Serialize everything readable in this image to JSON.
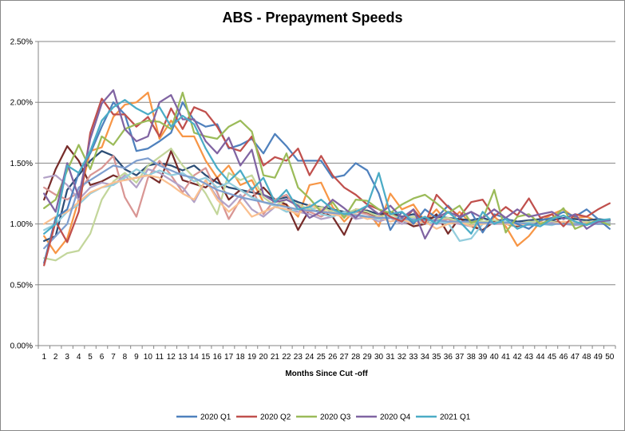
{
  "chart_data": {
    "type": "line",
    "title": "ABS - Prepayment Speeds",
    "xlabel": "Months Since Cut -off",
    "ylabel": "",
    "y_ticks": [
      "0.00%",
      "0.50%",
      "1.00%",
      "1.50%",
      "2.00%",
      "2.50%"
    ],
    "ylim": [
      0,
      2.5
    ],
    "x": [
      1,
      2,
      3,
      4,
      5,
      6,
      7,
      8,
      9,
      10,
      11,
      12,
      13,
      14,
      15,
      16,
      17,
      18,
      19,
      20,
      21,
      22,
      23,
      24,
      25,
      26,
      27,
      28,
      29,
      30,
      31,
      32,
      33,
      34,
      35,
      36,
      37,
      38,
      39,
      40,
      41,
      42,
      43,
      44,
      45,
      46,
      47,
      48,
      49,
      50
    ],
    "grid": "horizontal",
    "legend_position": "bottom",
    "series": [
      {
        "name": "2020 Q1",
        "color": "#4f81bd",
        "values": [
          0.68,
          1.05,
          1.12,
          1.42,
          1.58,
          1.8,
          2.0,
          1.9,
          1.6,
          1.62,
          1.68,
          1.75,
          2.0,
          1.85,
          1.8,
          1.82,
          1.62,
          1.65,
          1.7,
          1.58,
          1.74,
          1.64,
          1.52,
          1.52,
          1.52,
          1.38,
          1.4,
          1.5,
          1.44,
          1.25,
          0.95,
          1.1,
          1.0,
          1.12,
          1.05,
          1.15,
          1.05,
          1.1,
          0.93,
          1.08,
          1.05,
          1.0,
          0.96,
          1.03,
          1.05,
          1.1,
          1.06,
          1.12,
          1.04,
          0.96
        ]
      },
      {
        "name": "2020 Q2",
        "color": "#c0504d",
        "values": [
          0.66,
          1.02,
          0.85,
          1.1,
          1.75,
          2.03,
          1.9,
          1.9,
          1.8,
          1.88,
          1.72,
          1.95,
          1.78,
          1.96,
          1.92,
          1.8,
          1.63,
          1.6,
          1.72,
          1.48,
          1.55,
          1.52,
          1.62,
          1.4,
          1.56,
          1.4,
          1.3,
          1.24,
          1.16,
          1.12,
          1.06,
          1.02,
          1.12,
          1.0,
          1.24,
          1.14,
          1.06,
          1.18,
          1.2,
          1.06,
          1.14,
          1.07,
          1.21,
          1.05,
          1.08,
          0.98,
          1.08,
          1.06,
          1.12,
          1.17
        ]
      },
      {
        "name": "2020 Q3",
        "color": "#9bbb59",
        "values": [
          1.13,
          1.2,
          1.44,
          1.65,
          1.45,
          1.72,
          1.65,
          1.78,
          1.82,
          1.85,
          1.84,
          1.78,
          2.08,
          1.75,
          1.72,
          1.7,
          1.8,
          1.85,
          1.76,
          1.4,
          1.38,
          1.58,
          1.3,
          1.21,
          1.1,
          1.18,
          1.05,
          1.2,
          1.19,
          1.12,
          1.09,
          1.16,
          1.21,
          1.24,
          1.17,
          1.09,
          1.15,
          1.01,
          1.04,
          1.28,
          0.93,
          1.06,
          1.08,
          1.0,
          1.04,
          1.13,
          0.96,
          1.0,
          1.03,
          0.99
        ]
      },
      {
        "name": "2020 Q4",
        "color": "#8064a2",
        "values": [
          1.25,
          1.1,
          1.5,
          1.22,
          1.7,
          1.99,
          2.1,
          1.78,
          1.68,
          1.72,
          2.0,
          2.06,
          1.86,
          1.86,
          1.68,
          1.58,
          1.71,
          1.48,
          1.61,
          1.24,
          1.18,
          1.2,
          1.15,
          1.05,
          1.1,
          1.2,
          1.13,
          1.05,
          1.15,
          1.08,
          1.15,
          1.05,
          1.12,
          0.88,
          1.05,
          1.1,
          1.06,
          1.1,
          1.05,
          1.12,
          1.05,
          1.12,
          1.06,
          1.08,
          1.1,
          1.04,
          1.08,
          0.96,
          1.02,
          1.03
        ]
      },
      {
        "name": "2021 Q1",
        "color": "#4bacc6",
        "values": [
          0.92,
          1.0,
          1.48,
          1.42,
          1.6,
          1.85,
          1.96,
          2.02,
          1.95,
          1.9,
          1.96,
          1.8,
          1.89,
          1.82,
          1.62,
          1.46,
          1.35,
          1.44,
          1.28,
          1.38,
          1.18,
          1.28,
          1.12,
          1.14,
          1.2,
          1.12,
          1.08,
          1.1,
          1.15,
          1.42,
          1.08,
          1.1,
          1.02,
          1.06,
          1.0,
          1.1,
          1.02,
          0.92,
          1.1,
          1.0,
          1.04,
          0.96,
          1.0,
          0.98,
          1.04,
          1.07,
          1.02,
          0.99,
          1.03,
          1.04
        ]
      },
      {
        "name": "",
        "color": "#f79646",
        "values": [
          0.9,
          0.76,
          0.88,
          1.2,
          1.6,
          1.63,
          1.88,
          1.98,
          2.0,
          2.08,
          1.7,
          1.85,
          1.72,
          1.72,
          1.52,
          1.38,
          1.48,
          1.32,
          1.36,
          1.18,
          1.15,
          1.16,
          1.06,
          1.32,
          1.34,
          1.14,
          1.02,
          1.12,
          1.11,
          0.98,
          1.25,
          1.12,
          1.16,
          1.02,
          1.12,
          1.0,
          1.1,
          1.0,
          0.94,
          1.06,
          0.98,
          0.82,
          0.9,
          1.02,
          1.08,
          1.12,
          1.05,
          1.06,
          1.02,
          1.04
        ]
      },
      {
        "name": "",
        "color": "#2c4d75",
        "values": [
          0.86,
          0.9,
          1.28,
          1.4,
          1.52,
          1.6,
          1.56,
          1.45,
          1.4,
          1.48,
          1.5,
          1.48,
          1.44,
          1.48,
          1.4,
          1.34,
          1.3,
          1.28,
          1.26,
          1.24,
          1.2,
          1.22,
          1.18,
          1.15,
          1.14,
          1.12,
          1.1,
          1.1,
          1.11,
          1.08,
          1.1,
          1.06,
          1.08,
          1.04,
          1.06,
          1.05,
          1.04,
          1.03,
          1.05,
          1.02,
          1.04,
          1.02,
          1.03,
          1.04,
          1.03,
          1.05,
          1.04,
          1.03,
          1.04,
          1.03
        ]
      },
      {
        "name": "",
        "color": "#772c2a",
        "values": [
          1.2,
          1.45,
          1.64,
          1.52,
          1.32,
          1.35,
          1.4,
          1.36,
          1.38,
          1.4,
          1.34,
          1.6,
          1.36,
          1.33,
          1.3,
          1.38,
          1.2,
          1.28,
          1.22,
          1.3,
          1.2,
          1.16,
          0.95,
          1.12,
          1.1,
          1.06,
          0.91,
          1.12,
          1.09,
          1.06,
          1.1,
          1.03,
          0.98,
          1.0,
          1.08,
          0.92,
          1.05,
          0.98,
          0.95,
          1.02,
          1.0,
          0.98,
          1.01,
          1.0,
          1.02,
          1.01,
          1.0,
          1.02,
          1.0,
          1.01
        ]
      },
      {
        "name": "",
        "color": "#d99694",
        "values": [
          1.3,
          1.24,
          1.2,
          1.26,
          1.4,
          1.46,
          1.56,
          1.22,
          1.06,
          1.38,
          1.52,
          1.4,
          1.26,
          1.4,
          1.46,
          1.26,
          1.04,
          1.2,
          1.3,
          1.08,
          1.2,
          1.24,
          1.12,
          1.1,
          1.06,
          1.12,
          1.07,
          1.1,
          1.08,
          1.04,
          1.06,
          1.02,
          1.04,
          1.0,
          1.02,
          1.04,
          1.0,
          0.98,
          1.02,
          1.0,
          1.01,
          1.0,
          1.02,
          1.01,
          1.0,
          1.02,
          1.01,
          1.0,
          1.01,
          1.02
        ]
      },
      {
        "name": "",
        "color": "#c3d69b",
        "values": [
          0.72,
          0.7,
          0.76,
          0.78,
          0.92,
          1.2,
          1.35,
          1.42,
          1.34,
          1.48,
          1.55,
          1.62,
          1.48,
          1.38,
          1.25,
          1.08,
          1.42,
          1.36,
          1.4,
          1.22,
          1.15,
          1.2,
          1.16,
          1.12,
          1.14,
          1.1,
          1.08,
          1.12,
          1.1,
          1.06,
          1.08,
          1.04,
          1.06,
          1.02,
          1.04,
          1.05,
          1.02,
          1.0,
          1.02,
          1.03,
          1.01,
          1.0,
          1.02,
          1.01,
          1.02,
          1.0,
          1.01,
          1.02,
          1.0,
          1.01
        ]
      },
      {
        "name": "",
        "color": "#b3a2c7",
        "values": [
          1.38,
          1.4,
          1.32,
          1.2,
          1.3,
          1.34,
          1.32,
          1.4,
          1.3,
          1.45,
          1.42,
          1.36,
          1.3,
          1.18,
          1.36,
          1.22,
          1.14,
          1.24,
          1.12,
          1.06,
          1.14,
          1.12,
          1.1,
          1.08,
          1.04,
          1.06,
          1.1,
          1.04,
          1.06,
          1.02,
          1.05,
          1.0,
          1.03,
          1.01,
          1.0,
          1.02,
          1.0,
          0.98,
          1.01,
          1.0,
          1.0,
          1.01,
          0.99,
          1.0,
          1.01,
          1.0,
          0.99,
          1.0,
          1.01,
          1.0
        ]
      },
      {
        "name": "",
        "color": "#93cddd",
        "values": [
          0.95,
          1.0,
          1.1,
          1.16,
          1.25,
          1.3,
          1.32,
          1.38,
          1.45,
          1.4,
          1.44,
          1.4,
          1.42,
          1.35,
          1.38,
          1.3,
          1.34,
          1.28,
          1.22,
          1.18,
          1.15,
          1.1,
          1.12,
          1.14,
          1.08,
          1.06,
          1.1,
          1.08,
          1.06,
          1.04,
          1.06,
          1.02,
          1.04,
          1.0,
          1.02,
          1.01,
          0.86,
          0.88,
          1.0,
          1.01,
          1.02,
          1.0,
          1.01,
          1.0,
          0.99,
          1.02,
          1.0,
          1.01,
          1.0,
          1.02
        ]
      },
      {
        "name": "",
        "color": "#fac090",
        "values": [
          1.0,
          1.06,
          1.1,
          1.18,
          1.26,
          1.3,
          1.34,
          1.36,
          1.38,
          1.4,
          1.38,
          1.32,
          1.25,
          1.2,
          1.36,
          1.2,
          1.1,
          1.18,
          1.06,
          1.1,
          1.14,
          1.12,
          1.08,
          1.16,
          1.12,
          1.08,
          1.06,
          1.08,
          1.04,
          1.06,
          1.02,
          1.04,
          1.0,
          1.02,
          0.96,
          1.0,
          1.02,
          0.98,
          1.0,
          1.01,
          1.0,
          0.99,
          1.0,
          1.01,
          1.0,
          1.02,
          1.0,
          1.01,
          1.0,
          1.0
        ]
      },
      {
        "name": "",
        "color": "#7f9fcf",
        "values": [
          0.8,
          0.9,
          1.0,
          1.3,
          1.36,
          1.42,
          1.48,
          1.46,
          1.52,
          1.54,
          1.48,
          1.44,
          1.4,
          1.38,
          1.33,
          1.28,
          1.25,
          1.22,
          1.2,
          1.18,
          1.16,
          1.14,
          1.12,
          1.11,
          1.1,
          1.09,
          1.08,
          1.07,
          1.06,
          1.05,
          1.05,
          1.04,
          1.04,
          1.03,
          1.03,
          1.02,
          1.02,
          1.02,
          1.01,
          1.01,
          1.01,
          1.01,
          1.0,
          1.0,
          1.0,
          1.0,
          1.0,
          1.0,
          1.0,
          1.0
        ]
      }
    ]
  }
}
